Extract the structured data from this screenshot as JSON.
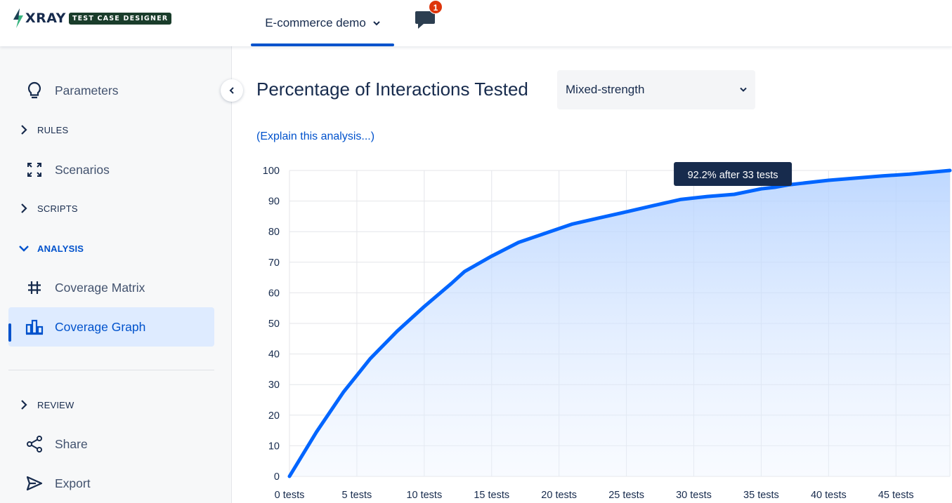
{
  "app": {
    "logo_text": "XRAY",
    "logo_badge": "TEST CASE DESIGNER",
    "project_name": "E-commerce demo",
    "notification_count": "1"
  },
  "sidebar": {
    "parameters": "Parameters",
    "rules": "RULES",
    "scenarios": "Scenarios",
    "scripts": "SCRIPTS",
    "analysis": "ANALYSIS",
    "coverage_matrix": "Coverage Matrix",
    "coverage_graph": "Coverage Graph",
    "review": "REVIEW",
    "share": "Share",
    "export": "Export"
  },
  "main": {
    "title": "Percentage of Interactions Tested",
    "strength_select": "Mixed-strength",
    "explain_link": "(Explain this analysis...)"
  },
  "colors": {
    "accent": "#0052cc",
    "line": "#0065ff",
    "tooltip": "#172b4d"
  },
  "chart_data": {
    "type": "area",
    "title": "Percentage of Interactions Tested",
    "x_tick_labels": [
      "0 tests",
      "5 tests",
      "10 tests",
      "15 tests",
      "20 tests",
      "25 tests",
      "30 tests",
      "35 tests",
      "40 tests",
      "45 tests"
    ],
    "y_tick_labels": [
      "0",
      "10",
      "20",
      "30",
      "40",
      "50",
      "60",
      "70",
      "80",
      "90",
      "100"
    ],
    "xlim": [
      0,
      49
    ],
    "ylim": [
      0,
      100
    ],
    "grid": true,
    "x": [
      0,
      2,
      4,
      6,
      8,
      10,
      12,
      13,
      15,
      17,
      19,
      21,
      23,
      25,
      27,
      29,
      31,
      33,
      35,
      36,
      37,
      38,
      39,
      40,
      42,
      44,
      46,
      48,
      49
    ],
    "y": [
      0,
      14.5,
      27.5,
      38.5,
      47.5,
      55.5,
      63,
      67,
      72,
      76.5,
      79.5,
      82.5,
      84.5,
      86.5,
      88.5,
      90.5,
      91.5,
      92.2,
      94,
      94.5,
      95.3,
      95.8,
      96.3,
      96.8,
      97.5,
      98.2,
      98.8,
      99.6,
      100
    ],
    "tooltip": "92.2% after 33 tests"
  }
}
